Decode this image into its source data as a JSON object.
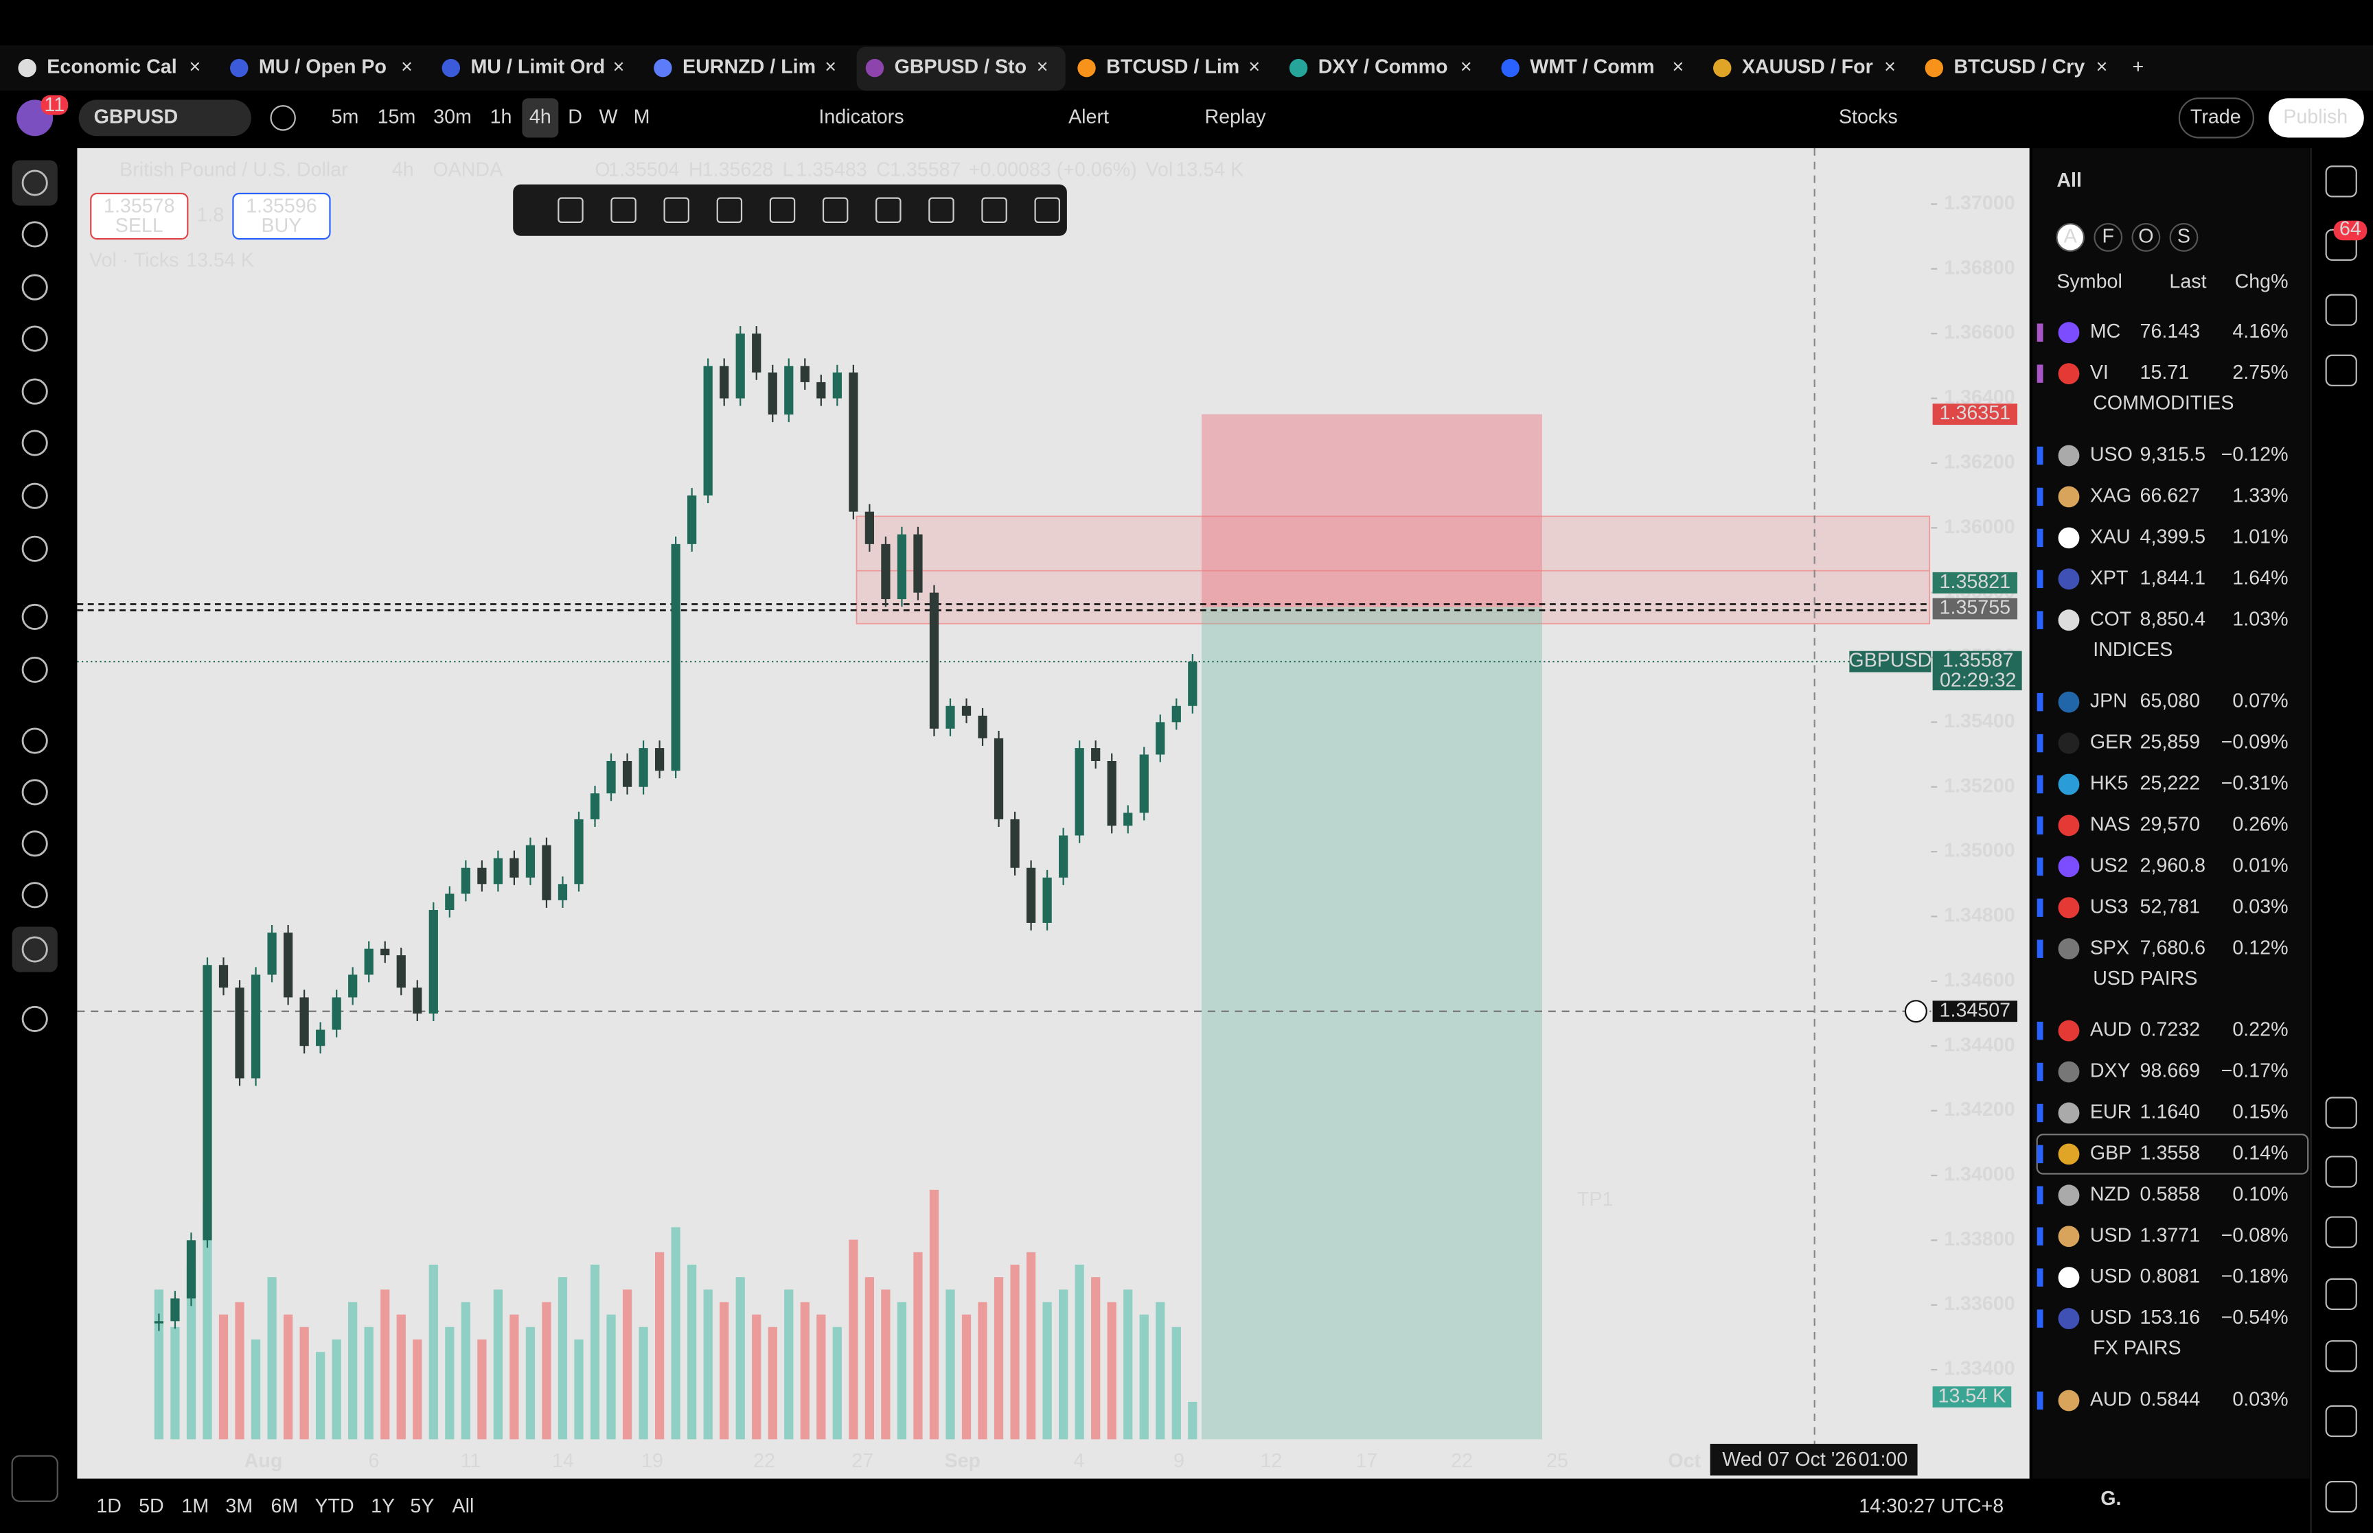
{
  "tabs": [
    "Economic Cal",
    "MU / Open Po",
    "MU / Limit Ord",
    "EURNZD / Lim",
    "GBPUSD / Sto",
    "BTCUSD / Lim",
    "DXY / Commo",
    "WMT / Comm",
    "XAUUSD / For",
    "BTCUSD / Cry"
  ],
  "notification_badge": "11",
  "toolbar": {
    "symbol": "GBPUSD",
    "intervals": [
      "5m",
      "15m",
      "30m",
      "1h",
      "4h",
      "D",
      "W",
      "M"
    ],
    "indicators": "Indicators",
    "alert": "Alert",
    "replay": "Replay",
    "stocks": "Stocks",
    "trade": "Trade",
    "publish": "Publish"
  },
  "chart": {
    "title": "British Pound / U.S. Dollar",
    "interval": "4h",
    "source": "OANDA",
    "ohlc": [
      [
        "O",
        "1.35504"
      ],
      [
        "H",
        "1.35628"
      ],
      [
        "L",
        "1.35483"
      ],
      [
        "C",
        "1.35587"
      ]
    ],
    "change": "+0.00083 (+0.06%)",
    "vol_label": "Vol",
    "vol": "13.54 K",
    "sell": {
      "price": "1.35578",
      "label": "SELL"
    },
    "spread": "1.8",
    "buy": {
      "price": "1.35596",
      "label": "BUY"
    },
    "vol_ticks": "Vol · Ticks",
    "vol_ticks_value": "13.54 K",
    "price_ticks": [
      {
        "value": 1.37,
        "label": "1.37000"
      },
      {
        "value": 1.368,
        "label": "1.36800"
      },
      {
        "value": 1.366,
        "label": "1.36600"
      },
      {
        "value": 1.364,
        "label": "1.36400"
      },
      {
        "value": 1.362,
        "label": "1.36200"
      },
      {
        "value": 1.36,
        "label": "1.36000"
      },
      {
        "value": 1.358,
        "label": "1.35800"
      },
      {
        "value": 1.356,
        "label": "1.35600"
      },
      {
        "value": 1.354,
        "label": "1.35400"
      },
      {
        "value": 1.352,
        "label": "1.35200"
      },
      {
        "value": 1.35,
        "label": "1.35000"
      },
      {
        "value": 1.348,
        "label": "1.34800"
      },
      {
        "value": 1.346,
        "label": "1.34600"
      },
      {
        "value": 1.344,
        "label": "1.34400"
      },
      {
        "value": 1.342,
        "label": "1.34200"
      },
      {
        "value": 1.34,
        "label": "1.34000"
      },
      {
        "value": 1.338,
        "label": "1.33800"
      },
      {
        "value": 1.336,
        "label": "1.33600"
      },
      {
        "value": 1.334,
        "label": "1.33400"
      }
    ],
    "x_labels": [
      "Aug",
      "6",
      "11",
      "14",
      "19",
      "22",
      "27",
      "Sep",
      "4",
      "9",
      "12",
      "17",
      "22",
      "25",
      "Oct"
    ],
    "closes": [
      1.3355,
      1.3362,
      1.338,
      1.3465,
      1.3458,
      1.343,
      1.3462,
      1.3475,
      1.3455,
      1.344,
      1.3445,
      1.3455,
      1.3462,
      1.347,
      1.3468,
      1.3458,
      1.345,
      1.3482,
      1.3487,
      1.3495,
      1.349,
      1.3498,
      1.3492,
      1.3502,
      1.3485,
      1.349,
      1.351,
      1.3518,
      1.3528,
      1.352,
      1.3532,
      1.3525,
      1.3595,
      1.361,
      1.365,
      1.364,
      1.366,
      1.3648,
      1.3635,
      1.365,
      1.3645,
      1.364,
      1.3648,
      1.3605,
      1.3595,
      1.3578,
      1.3598,
      1.358,
      1.3538,
      1.3545,
      1.3542,
      1.3535,
      1.351,
      1.3495,
      1.3478,
      1.3492,
      1.3505,
      1.3532,
      1.3528,
      1.3508,
      1.3512,
      1.353,
      1.354,
      1.3545,
      1.35587
    ],
    "volumes": [
      60,
      45,
      70,
      95,
      50,
      55,
      40,
      65,
      50,
      45,
      35,
      40,
      55,
      45,
      60,
      50,
      40,
      70,
      45,
      55,
      40,
      60,
      50,
      45,
      55,
      65,
      40,
      70,
      50,
      60,
      45,
      75,
      85,
      70,
      60,
      55,
      65,
      50,
      45,
      60,
      55,
      50,
      45,
      80,
      65,
      60,
      55,
      75,
      100,
      60,
      50,
      55,
      65,
      70,
      75,
      55,
      60,
      70,
      65,
      55,
      60,
      50,
      55,
      45,
      15
    ],
    "stop": {
      "value": 1.36351,
      "label": "1.36351"
    },
    "zone": {
      "value": 1.35821,
      "label": "1.35821"
    },
    "entry": {
      "value": 1.35755,
      "label": "1.35755"
    },
    "last": {
      "symbol": "GBPUSD",
      "value": 1.35587,
      "label": "1.35587",
      "countdown": "02:29:32"
    },
    "crosshair": {
      "value": 1.34507,
      "label": "1.34507",
      "date": "Wed 07 Oct '26",
      "time": "01:00"
    },
    "tp_label": "TP1"
  },
  "watchlist": {
    "filter": "All",
    "chips": [
      "A",
      "F",
      "O",
      "S"
    ],
    "columns": [
      "Symbol",
      "Last",
      "Chg%"
    ],
    "groups": [
      {
        "title": null,
        "rows": [
          [
            "MC",
            "76.143",
            "4.16%"
          ],
          [
            "VI",
            "15.71",
            "2.75%"
          ]
        ]
      },
      {
        "title": "COMMODITIES",
        "rows": [
          [
            "USO",
            "9,315.5",
            "−0.12%"
          ],
          [
            "XAG",
            "66.627",
            "1.33%"
          ],
          [
            "XAU",
            "4,399.5",
            "1.01%"
          ],
          [
            "XPT",
            "1,844.1",
            "1.64%"
          ],
          [
            "COT",
            "8,850.4",
            "1.03%"
          ]
        ]
      },
      {
        "title": "INDICES",
        "rows": [
          [
            "JPN",
            "65,080",
            "0.07%"
          ],
          [
            "GER",
            "25,859",
            "−0.09%"
          ],
          [
            "HK5",
            "25,222",
            "−0.31%"
          ],
          [
            "NAS",
            "29,570",
            "0.26%"
          ],
          [
            "US2",
            "2,960.8",
            "0.01%"
          ],
          [
            "US3",
            "52,781",
            "0.03%"
          ],
          [
            "SPX",
            "7,680.6",
            "0.12%"
          ]
        ]
      },
      {
        "title": "USD PAIRS",
        "rows": [
          [
            "AUD",
            "0.7232",
            "0.22%"
          ],
          [
            "DXY",
            "98.669",
            "−0.17%"
          ],
          [
            "EUR",
            "1.1640",
            "0.15%"
          ],
          [
            "GBP",
            "1.3558",
            "0.14%"
          ],
          [
            "NZD",
            "0.5858",
            "0.10%"
          ],
          [
            "USD",
            "1.3771",
            "−0.08%"
          ],
          [
            "USD",
            "0.8081",
            "−0.18%"
          ],
          [
            "USD",
            "153.16",
            "−0.54%"
          ]
        ]
      },
      {
        "title": "FX PAIRS",
        "rows": [
          [
            "AUD",
            "0.5844",
            "0.03%"
          ]
        ]
      }
    ],
    "footer": "G."
  },
  "alerts_badge": "64",
  "ranges": [
    "1D",
    "5D",
    "1M",
    "3M",
    "6M",
    "YTD",
    "1Y",
    "5Y",
    "All"
  ],
  "clock": "14:30:27 UTC+8"
}
